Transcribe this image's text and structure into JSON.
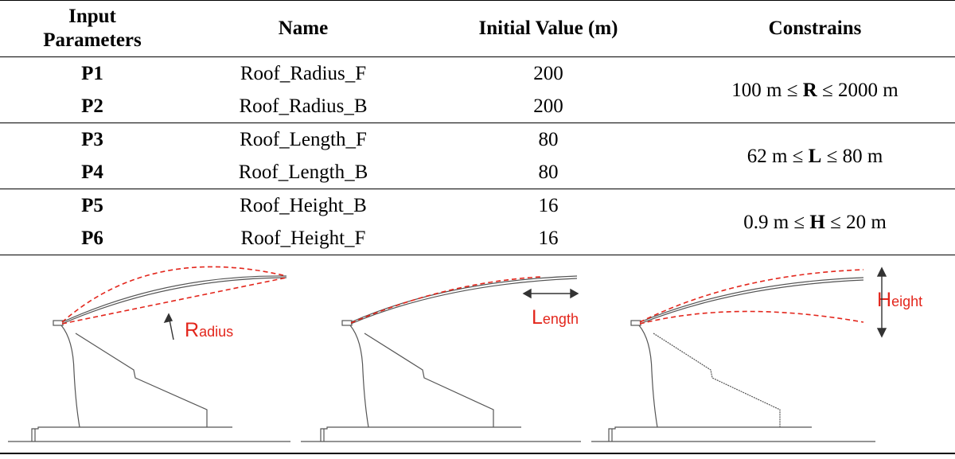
{
  "table": {
    "headers": {
      "input_parameters": "Input Parameters",
      "name": "Name",
      "initial_value": "Initial Value (m)",
      "constraints": "Constrains"
    },
    "rows": [
      {
        "id": "P1",
        "name": "Roof_Radius_F",
        "value": "200"
      },
      {
        "id": "P2",
        "name": "Roof_Radius_B",
        "value": "200"
      },
      {
        "id": "P3",
        "name": "Roof_Length_F",
        "value": "80"
      },
      {
        "id": "P4",
        "name": "Roof_Length_B",
        "value": "80"
      },
      {
        "id": "P5",
        "name": "Roof_Height_B",
        "value": "16"
      },
      {
        "id": "P6",
        "name": "Roof_Height_F",
        "value": "16"
      }
    ],
    "constraints": [
      {
        "pre": "100 m ≤ ",
        "symbol": "R",
        "post": " ≤ 2000 m"
      },
      {
        "pre": "62 m ≤ ",
        "symbol": "L",
        "post": " ≤ 80 m"
      },
      {
        "pre": "0.9 m ≤ ",
        "symbol": "H",
        "post": " ≤ 20 m"
      }
    ]
  },
  "figures": {
    "radius_label": {
      "initial": "R",
      "rest": "adius"
    },
    "length_label": {
      "initial": "L",
      "rest": "ength"
    },
    "height_label": {
      "initial": "H",
      "rest": "eight"
    }
  },
  "colors": {
    "annotation_red": "#e3261c",
    "structure": "#555555",
    "text": "#000000"
  }
}
